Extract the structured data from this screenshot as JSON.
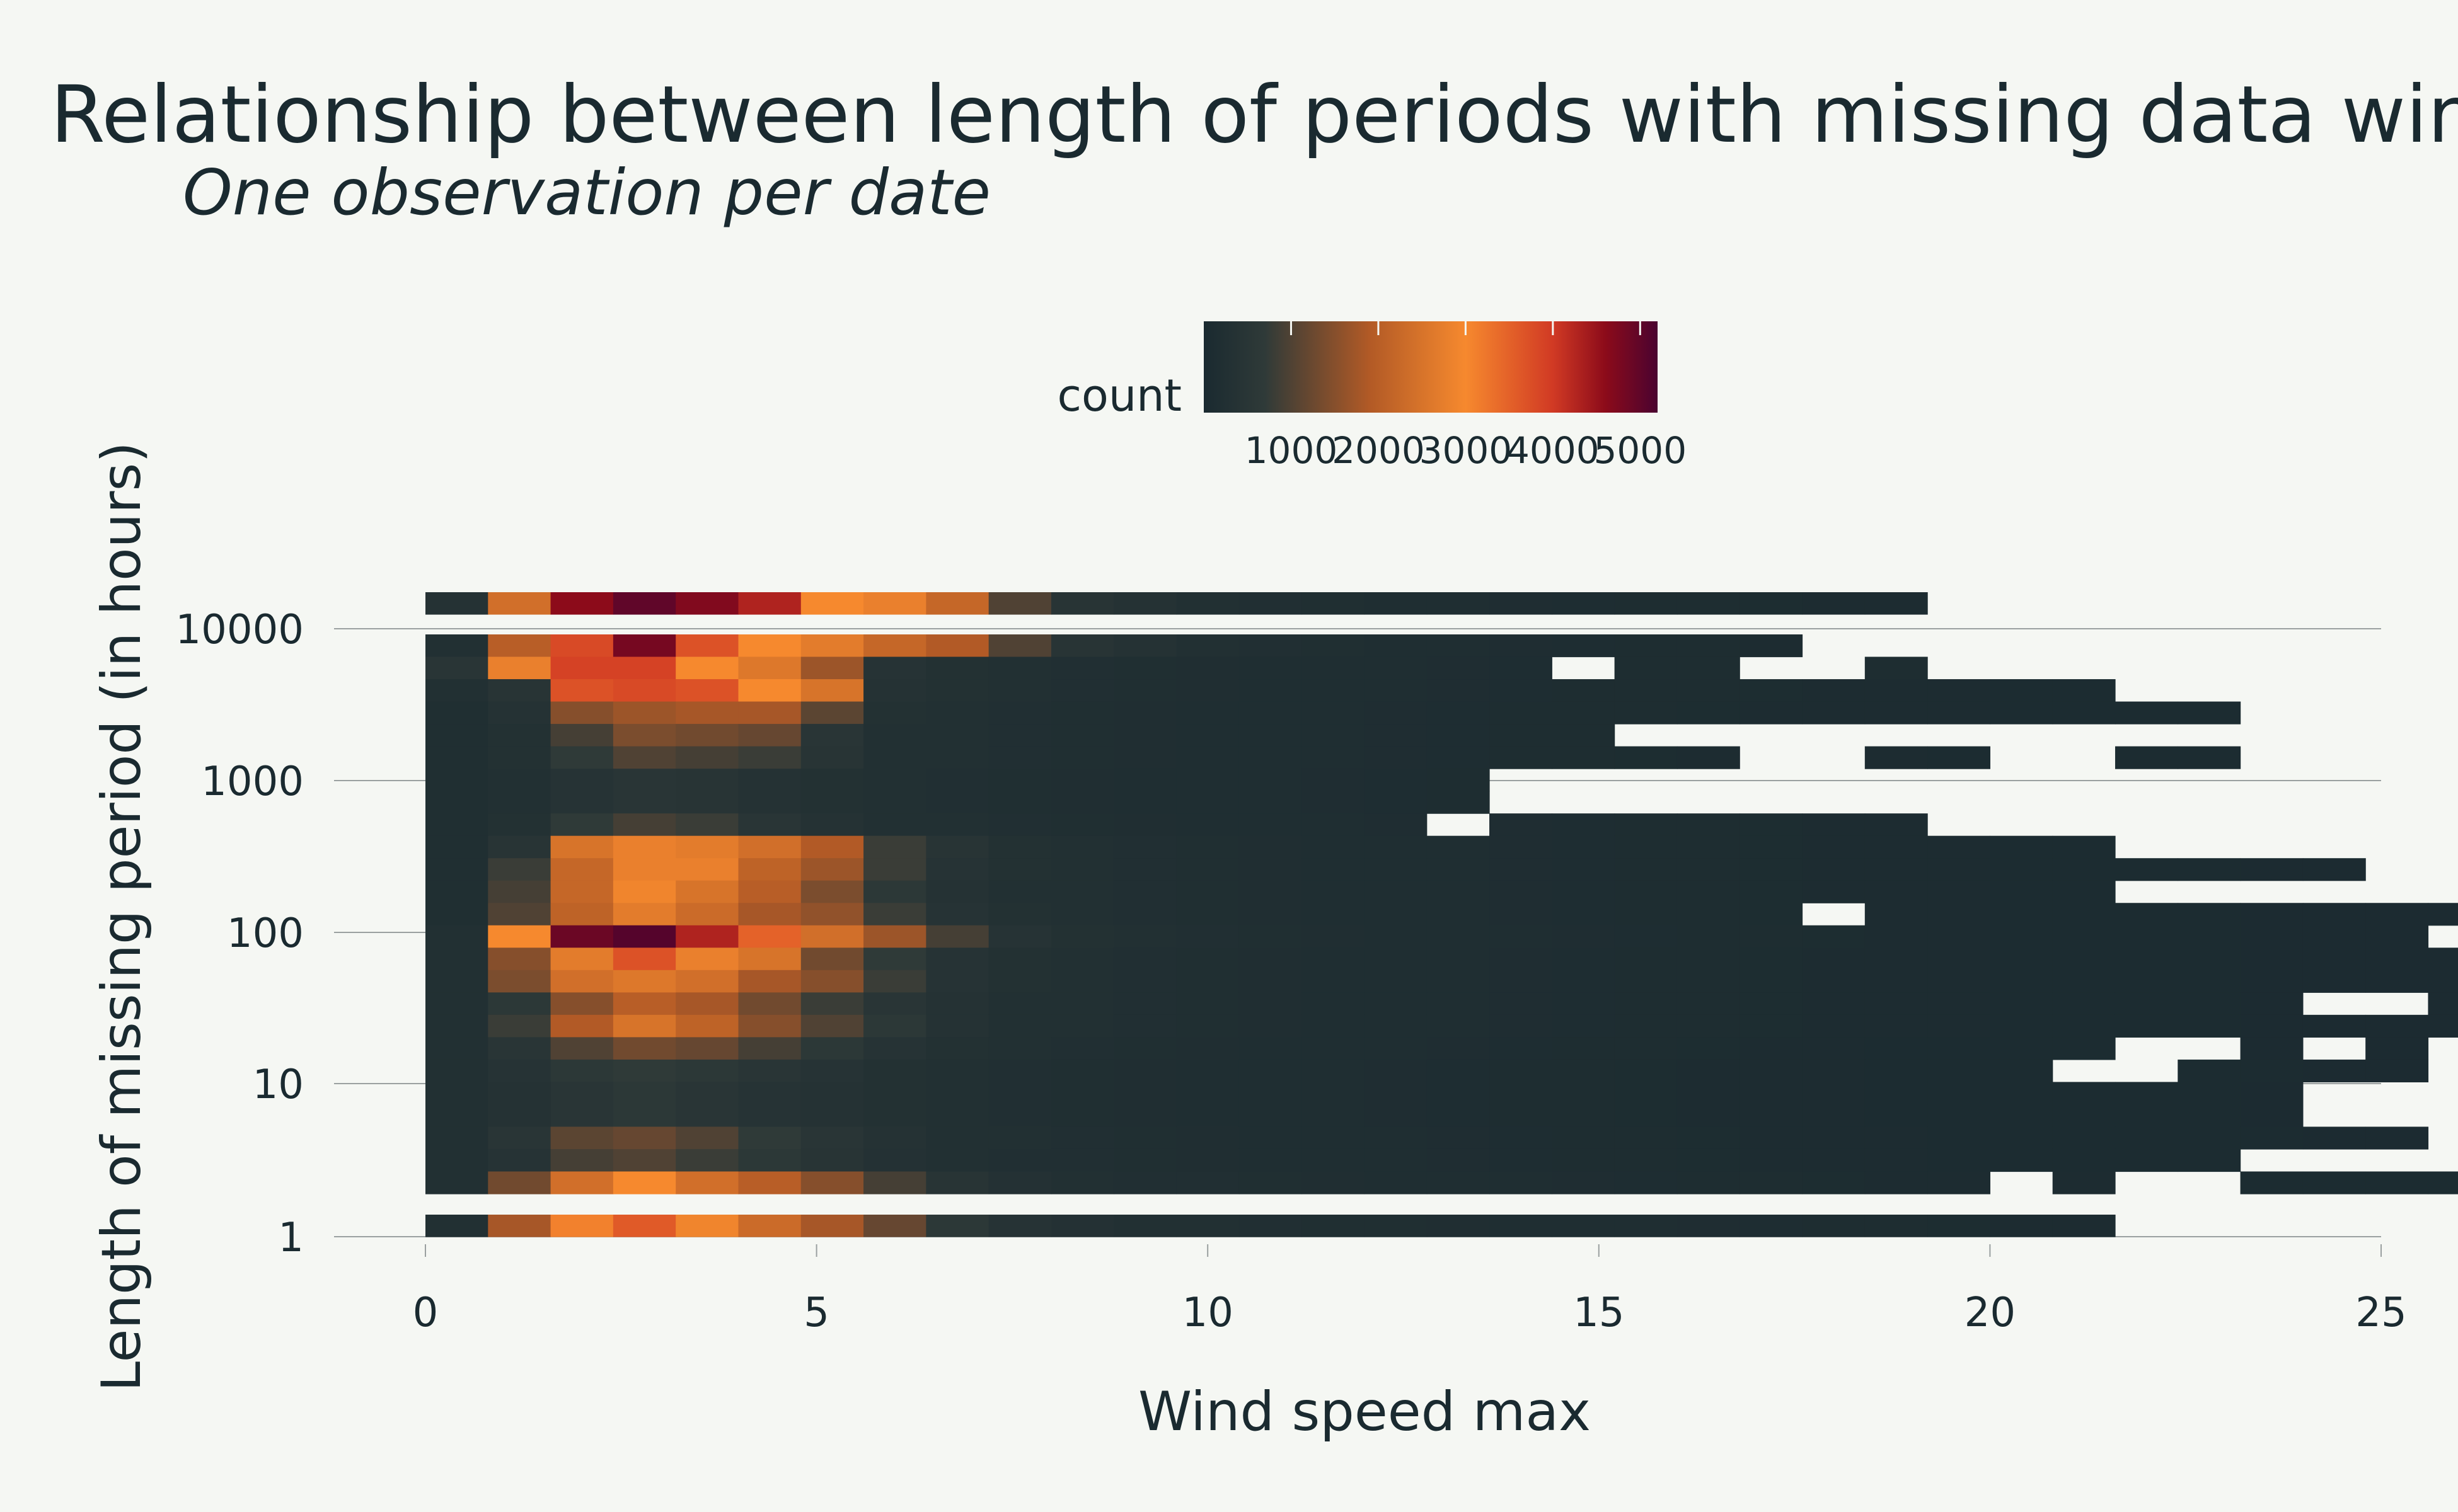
{
  "chart_data": {
    "type": "heatmap",
    "title": "Relationship between length of periods with missing data wind s",
    "subtitle": "One observation per date",
    "xlabel": "Wind speed max",
    "ylabel": "Length of missing period (in hours)",
    "xlim": [
      0,
      25
    ],
    "x_ticks": [
      0,
      5,
      10,
      15,
      20,
      25
    ],
    "y_scale": "log",
    "y_ticks": [
      1,
      10,
      100,
      1000,
      10000
    ],
    "y_tick_labels": [
      "1",
      "10",
      "100",
      "1000",
      "10000"
    ],
    "x_bins_start": 0,
    "x_bin_width": 0.8,
    "rows_top_to_bottom": [
      {
        "bin": "top",
        "counts": [
          350,
          2400,
          4600,
          5000,
          4700,
          4300,
          3000,
          2800,
          2200,
          1000,
          450,
          350,
          280,
          220,
          200,
          180,
          160,
          150,
          140,
          130,
          120,
          110,
          100,
          90
        ]
      },
      {
        "bin": "gap"
      },
      {
        "bin": "k",
        "counts": [
          250,
          2000,
          3800,
          4800,
          3700,
          3000,
          2700,
          2200,
          1900,
          1000,
          450,
          350,
          250,
          220,
          200,
          180,
          160,
          150,
          140,
          130,
          120,
          100
        ]
      },
      {
        "bin": "k",
        "counts": [
          500,
          2800,
          3900,
          3900,
          3000,
          2600,
          1700,
          400,
          300,
          250,
          220,
          200,
          190,
          180,
          170,
          160,
          150,
          140,
          0,
          130,
          120,
          0,
          0,
          120
        ]
      },
      {
        "bin": "k",
        "counts": [
          250,
          450,
          3700,
          3800,
          3700,
          3000,
          2500,
          350,
          300,
          250,
          220,
          200,
          190,
          180,
          170,
          160,
          150,
          140,
          130,
          120,
          120,
          110,
          100,
          90,
          90,
          80,
          80
        ]
      },
      {
        "bin": "k",
        "counts": [
          200,
          350,
          1500,
          1700,
          1800,
          1800,
          1100,
          300,
          250,
          220,
          200,
          190,
          180,
          170,
          160,
          150,
          140,
          130,
          120,
          120,
          110,
          100,
          100,
          90,
          90,
          80,
          80,
          70,
          70
        ]
      },
      {
        "bin": "k",
        "counts": [
          200,
          300,
          900,
          1400,
          1300,
          1200,
          500,
          280,
          250,
          220,
          200,
          190,
          180,
          170,
          160,
          150,
          140,
          130,
          120
        ]
      },
      {
        "bin": "k",
        "counts": [
          200,
          300,
          700,
          1000,
          900,
          800,
          450,
          280,
          250,
          220,
          200,
          190,
          180,
          170,
          160,
          150,
          140,
          130,
          120,
          110,
          100,
          0,
          0,
          90,
          80,
          0,
          0,
          70,
          70
        ]
      },
      {
        "bin": "k",
        "counts": [
          200,
          250,
          400,
          500,
          450,
          350,
          300,
          250,
          220,
          200,
          190,
          180,
          170,
          160,
          150,
          140,
          130
        ]
      },
      {
        "bin": "k",
        "counts": [
          200,
          250,
          400,
          500,
          450,
          350,
          300,
          250,
          220,
          200,
          190,
          180,
          170,
          160,
          150,
          140,
          130
        ]
      },
      {
        "bin": "k",
        "counts": [
          200,
          300,
          700,
          900,
          800,
          500,
          350,
          280,
          250,
          220,
          200,
          190,
          180,
          170,
          160,
          150,
          0,
          150,
          140,
          130,
          120,
          110,
          100,
          90
        ]
      },
      {
        "bin": "k",
        "counts": [
          200,
          450,
          2500,
          2800,
          2700,
          2400,
          1900,
          800,
          450,
          300,
          250,
          220,
          200,
          190,
          180,
          170,
          160,
          150,
          140,
          130,
          120,
          110,
          100,
          90,
          90,
          80,
          80
        ]
      },
      {
        "bin": "k",
        "counts": [
          200,
          800,
          2200,
          2800,
          2800,
          2100,
          1700,
          800,
          400,
          300,
          250,
          220,
          200,
          190,
          180,
          170,
          160,
          150,
          140,
          130,
          120,
          110,
          100,
          90,
          90,
          80,
          80,
          70,
          70,
          60,
          60
        ]
      },
      {
        "bin": "k",
        "counts": [
          200,
          900,
          2200,
          2900,
          2500,
          2000,
          1400,
          600,
          350,
          280,
          250,
          220,
          200,
          190,
          180,
          170,
          160,
          150,
          140,
          130,
          120,
          110,
          100,
          90,
          90,
          80,
          80
        ]
      },
      {
        "bin": "k",
        "counts": [
          200,
          1000,
          2100,
          2700,
          2300,
          1800,
          1600,
          800,
          400,
          300,
          250,
          220,
          200,
          190,
          180,
          170,
          160,
          150,
          140,
          130,
          120,
          110,
          0,
          100,
          90,
          80,
          80,
          70,
          70,
          60,
          60,
          60,
          60
        ]
      },
      {
        "bin": "k",
        "counts": [
          250,
          3000,
          4900,
          5100,
          4300,
          3500,
          2400,
          1700,
          900,
          400,
          300,
          250,
          220,
          200,
          190,
          180,
          170,
          160,
          150,
          140,
          130,
          120,
          110,
          100,
          90,
          80,
          80,
          70,
          70,
          60,
          60,
          60,
          0,
          60,
          0,
          0,
          60
        ]
      },
      {
        "bin": "k",
        "counts": [
          250,
          1500,
          2700,
          3700,
          2800,
          2500,
          1300,
          700,
          400,
          300,
          250,
          220,
          200,
          190,
          180,
          170,
          160,
          150,
          140,
          130,
          120,
          110,
          100,
          90,
          90,
          80,
          80,
          70,
          70,
          60,
          60,
          60,
          60
        ]
      },
      {
        "bin": "k",
        "counts": [
          250,
          1400,
          2400,
          2600,
          2400,
          1800,
          1500,
          800,
          400,
          300,
          250,
          220,
          200,
          190,
          180,
          170,
          160,
          150,
          140,
          130,
          120,
          110,
          100,
          90,
          90,
          80,
          80,
          70,
          70,
          60,
          60,
          60,
          60
        ]
      },
      {
        "bin": "k",
        "counts": [
          250,
          600,
          1500,
          2000,
          1800,
          1300,
          800,
          500,
          350,
          280,
          250,
          220,
          200,
          190,
          180,
          170,
          160,
          150,
          140,
          130,
          120,
          110,
          100,
          90,
          90,
          80,
          80,
          70,
          70,
          60,
          0,
          0,
          60,
          60
        ]
      },
      {
        "bin": "k",
        "counts": [
          250,
          800,
          1900,
          2500,
          2100,
          1500,
          1000,
          600,
          350,
          280,
          250,
          220,
          200,
          190,
          180,
          170,
          160,
          150,
          140,
          130,
          120,
          110,
          100,
          90,
          90,
          80,
          80,
          70,
          70,
          60,
          60,
          60,
          60
        ]
      },
      {
        "bin": "k",
        "counts": [
          250,
          500,
          1000,
          1300,
          1200,
          900,
          600,
          400,
          300,
          250,
          220,
          200,
          190,
          180,
          170,
          160,
          150,
          140,
          130,
          120,
          110,
          100,
          90,
          80,
          80,
          70,
          70,
          0,
          0,
          60,
          0,
          60
        ]
      },
      {
        "bin": "k",
        "counts": [
          250,
          400,
          600,
          700,
          600,
          500,
          400,
          300,
          250,
          220,
          200,
          190,
          180,
          170,
          160,
          150,
          140,
          130,
          120,
          110,
          100,
          90,
          90,
          80,
          80,
          70,
          0,
          0,
          70,
          70,
          60,
          60
        ]
      },
      {
        "bin": "k",
        "counts": [
          250,
          350,
          500,
          600,
          500,
          400,
          350,
          300,
          250,
          220,
          200,
          190,
          180,
          170,
          160,
          150,
          140,
          130,
          120,
          110,
          100,
          90,
          90,
          80,
          80,
          70,
          70,
          70,
          70,
          60
        ]
      },
      {
        "bin": "k",
        "counts": [
          250,
          350,
          500,
          600,
          500,
          400,
          350,
          300,
          250,
          220,
          200,
          190,
          180,
          170,
          160,
          150,
          140,
          130,
          120,
          110,
          100,
          90,
          90,
          80,
          80,
          70,
          70,
          70,
          70,
          60
        ]
      },
      {
        "bin": "k",
        "counts": [
          250,
          500,
          1100,
          1200,
          1000,
          700,
          500,
          350,
          280,
          250,
          220,
          200,
          190,
          180,
          170,
          160,
          150,
          140,
          130,
          120,
          110,
          100,
          90,
          90,
          80,
          80,
          70,
          70,
          70,
          70,
          60,
          60,
          0,
          60,
          60,
          60
        ]
      },
      {
        "bin": "k",
        "counts": [
          250,
          400,
          900,
          1000,
          800,
          600,
          450,
          320,
          270,
          240,
          220,
          200,
          190,
          180,
          170,
          160,
          150,
          140,
          130,
          120,
          110,
          100,
          90,
          90,
          80,
          80,
          70,
          70,
          70
        ]
      },
      {
        "bin": "k",
        "counts": [
          250,
          1300,
          2400,
          3000,
          2400,
          2000,
          1500,
          900,
          450,
          320,
          270,
          240,
          220,
          200,
          190,
          180,
          170,
          160,
          150,
          140,
          130,
          120,
          110,
          100,
          90,
          0,
          90,
          0,
          0,
          80,
          80,
          80,
          80
        ]
      },
      {
        "bin": "gap"
      },
      {
        "bin": "bottom",
        "counts": [
          250,
          1800,
          3100,
          3600,
          2900,
          2300,
          1800,
          1200,
          600,
          400,
          320,
          280,
          250,
          230,
          210,
          200,
          190,
          180,
          170,
          160,
          150,
          140,
          130,
          120,
          110,
          100,
          90
        ]
      }
    ],
    "colorscale": {
      "title": "count",
      "ticks": [
        1000,
        2000,
        3000,
        4000,
        5000
      ],
      "range": [
        0,
        5200
      ],
      "stops": [
        {
          "v": 0,
          "color": "#1a2a30"
        },
        {
          "v": 700,
          "color": "#2f3a38"
        },
        {
          "v": 1900,
          "color": "#b25a26"
        },
        {
          "v": 3000,
          "color": "#f6892e"
        },
        {
          "v": 4000,
          "color": "#d13a24"
        },
        {
          "v": 4600,
          "color": "#8c0b1a"
        },
        {
          "v": 5200,
          "color": "#4a0330"
        }
      ]
    }
  }
}
